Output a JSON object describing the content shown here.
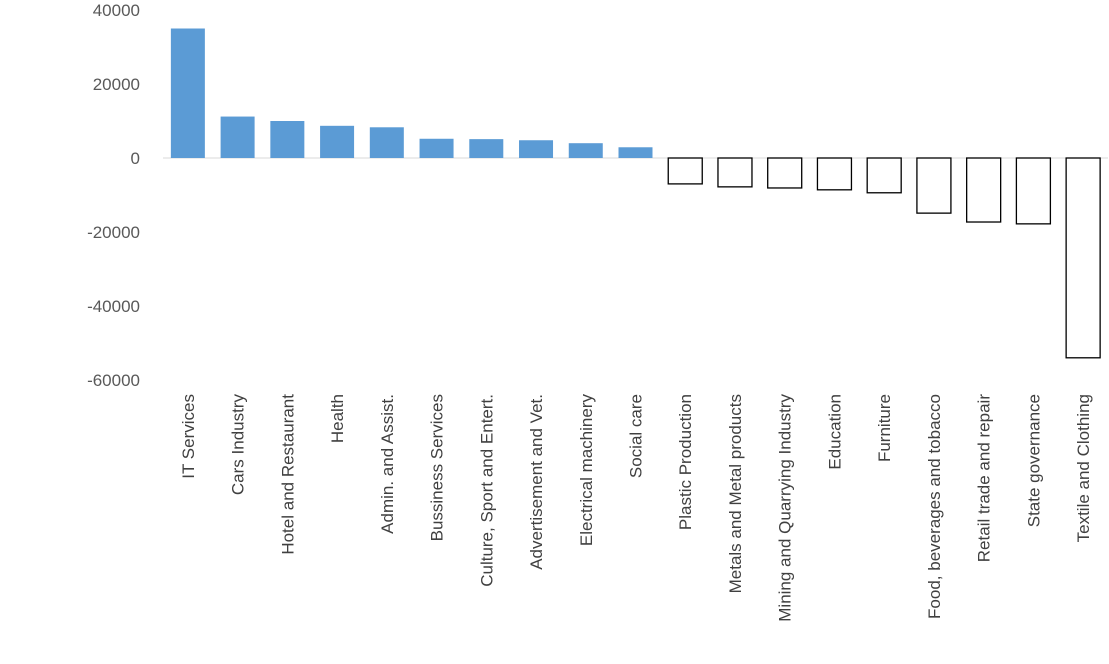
{
  "chart_data": {
    "type": "bar",
    "title": "",
    "xlabel": "",
    "ylabel": "",
    "ylim": [
      -60000,
      40000
    ],
    "yticks": [
      40000,
      20000,
      0,
      -20000,
      -40000,
      -60000
    ],
    "ytick_labels": [
      "40000",
      "20000",
      "0",
      "-20000",
      "-40000",
      "-60000"
    ],
    "grid": false,
    "legend": "none",
    "colors": {
      "positive_fill": "#5b9bd5",
      "negative_fill": "#ffffff",
      "negative_stroke": "#000000",
      "axis": "#d9d9d9"
    },
    "categories": [
      "IT Services",
      "Cars Industry",
      "Hotel and Restaurant",
      "Health",
      "Admin. and Assist.",
      "Bussiness Services",
      "Culture, Sport and Entert.",
      "Advertisement and Vet.",
      "Electrical machinery",
      "Social care",
      "Plastic Production",
      "Metals and Metal products",
      "Mining and Quarrying Industry",
      "Education",
      "Furniture",
      "Food, beverages and tobacco",
      "Retail trade and repair",
      "State governance",
      "Textile and Clothing"
    ],
    "values": [
      35000,
      11200,
      10000,
      8700,
      8300,
      5200,
      5100,
      4800,
      4000,
      2900,
      -7000,
      -7800,
      -8100,
      -8600,
      -9400,
      -14900,
      -17300,
      -17800,
      -54000
    ]
  }
}
